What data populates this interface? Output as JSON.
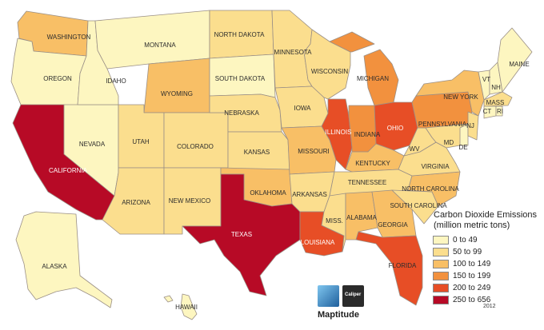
{
  "legend": {
    "title_line1": "Carbon Dioxide Emissions",
    "title_line2": "(million metric tons)",
    "bins": [
      {
        "label": "0 to 49",
        "color": "#fdf6c0"
      },
      {
        "label": "50 to 99",
        "color": "#fbde8e"
      },
      {
        "label": "100 to 149",
        "color": "#f8bf66"
      },
      {
        "label": "150 to 199",
        "color": "#f2913e"
      },
      {
        "label": "200 to 249",
        "color": "#e74e26"
      },
      {
        "label": "250 to 656",
        "color": "#b70a26"
      }
    ]
  },
  "year": "2012",
  "brand": {
    "name": "Maptitude",
    "logo_text": "Caliper"
  },
  "states": {
    "washington": {
      "label": "WASHINGTON",
      "bin": 2
    },
    "oregon": {
      "label": "OREGON",
      "bin": 0
    },
    "california": {
      "label": "CALIFORNIA",
      "bin": 5
    },
    "nevada": {
      "label": "NEVADA",
      "bin": 0
    },
    "idaho": {
      "label": "IDAHO",
      "bin": 0
    },
    "montana": {
      "label": "MONTANA",
      "bin": 0
    },
    "wyoming": {
      "label": "WYOMING",
      "bin": 2
    },
    "utah": {
      "label": "UTAH",
      "bin": 1
    },
    "arizona": {
      "label": "ARIZONA",
      "bin": 1
    },
    "colorado": {
      "label": "COLORADO",
      "bin": 1
    },
    "new_mexico": {
      "label": "NEW MEXICO",
      "bin": 1
    },
    "north_dakota": {
      "label": "NORTH DAKOTA",
      "bin": 1
    },
    "south_dakota": {
      "label": "SOUTH DAKOTA",
      "bin": 0
    },
    "nebraska": {
      "label": "NEBRASKA",
      "bin": 1
    },
    "kansas": {
      "label": "KANSAS",
      "bin": 1
    },
    "oklahoma": {
      "label": "OKLAHOMA",
      "bin": 2
    },
    "texas": {
      "label": "TEXAS",
      "bin": 5
    },
    "minnesota": {
      "label": "MINNESOTA",
      "bin": 1
    },
    "iowa": {
      "label": "IOWA",
      "bin": 1
    },
    "missouri": {
      "label": "MISSOURI",
      "bin": 2
    },
    "arkansas": {
      "label": "ARKANSAS",
      "bin": 1
    },
    "louisiana": {
      "label": "LOUISIANA",
      "bin": 4
    },
    "wisconsin": {
      "label": "WISCONSIN",
      "bin": 1
    },
    "illinois": {
      "label": "ILLINOIS",
      "bin": 4
    },
    "michigan": {
      "label": "MICHIGAN",
      "bin": 3
    },
    "indiana": {
      "label": "INDIANA",
      "bin": 3
    },
    "ohio": {
      "label": "OHIO",
      "bin": 4
    },
    "kentucky": {
      "label": "KENTUCKY",
      "bin": 2
    },
    "tennessee": {
      "label": "TENNESSEE",
      "bin": 1
    },
    "mississippi": {
      "label": "MISS.",
      "bin": 1
    },
    "alabama": {
      "label": "ALABAMA",
      "bin": 2
    },
    "georgia": {
      "label": "GEORGIA",
      "bin": 2
    },
    "florida": {
      "label": "FLORIDA",
      "bin": 4
    },
    "south_carolina": {
      "label": "SOUTH CAROLINA",
      "bin": 1
    },
    "north_carolina": {
      "label": "NORTH CAROLINA",
      "bin": 2
    },
    "virginia": {
      "label": "VIRGINIA",
      "bin": 1
    },
    "west_virginia": {
      "label": "WV",
      "bin": 1
    },
    "pennsylvania": {
      "label": "PENNSYLVANIA",
      "bin": 3
    },
    "new_york": {
      "label": "NEW YORK",
      "bin": 2
    },
    "maine": {
      "label": "MAINE",
      "bin": 0
    },
    "vermont": {
      "label": "VT",
      "bin": 0
    },
    "new_hampshire": {
      "label": "NH",
      "bin": 0
    },
    "massachusetts": {
      "label": "MASS",
      "bin": 1
    },
    "connecticut": {
      "label": "CT",
      "bin": 0
    },
    "rhode_island": {
      "label": "RI",
      "bin": 0
    },
    "new_jersey": {
      "label": "NJ",
      "bin": 1
    },
    "maryland": {
      "label": "MD",
      "bin": 1
    },
    "delaware": {
      "label": "DE",
      "bin": 0
    },
    "alaska": {
      "label": "ALASKA",
      "bin": 0
    },
    "hawaii": {
      "label": "HAWAII",
      "bin": 0
    }
  }
}
